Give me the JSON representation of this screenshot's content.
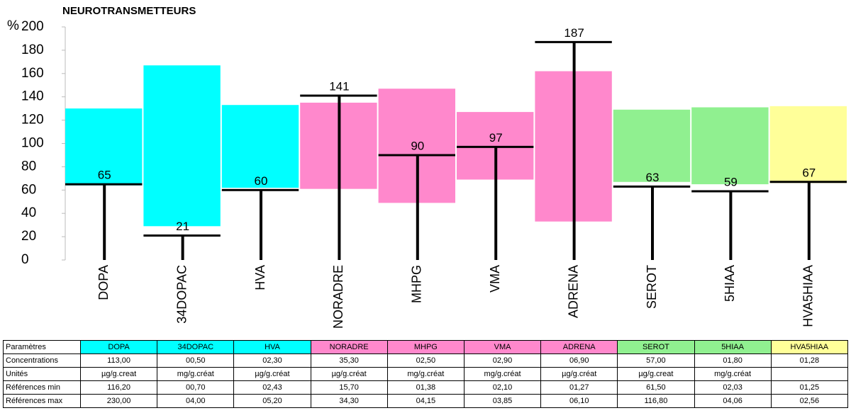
{
  "chart_data": {
    "type": "range_bar",
    "title": "NEUROTRANSMETTEURS",
    "y_label": "%",
    "categories": [
      "DOPA",
      "34DOPAC",
      "HVA",
      "NORADRE",
      "MHPG",
      "VMA",
      "ADRENA",
      "SEROT",
      "5HIAA",
      "HVA5HIAA"
    ],
    "colors": [
      "#00ffff",
      "#00ffff",
      "#00ffff",
      "#ff88cc",
      "#ff88cc",
      "#ff88cc",
      "#ff88cc",
      "#90f090",
      "#90f090",
      "#ffff99"
    ],
    "range_low": [
      64,
      29,
      62,
      61,
      49,
      69,
      33,
      67,
      65,
      66
    ],
    "range_high": [
      130,
      167,
      133,
      135,
      147,
      127,
      162,
      129,
      131,
      132
    ],
    "values": [
      65,
      21,
      60,
      141,
      90,
      97,
      187,
      63,
      59,
      67
    ],
    "ylim": [
      0,
      200
    ],
    "yticks": [
      0,
      20,
      40,
      60,
      80,
      100,
      120,
      140,
      160,
      180,
      200
    ]
  },
  "table": {
    "header": [
      "Paramètres",
      "DOPA",
      "34DOPAC",
      "HVA",
      "NORADRE",
      "MHPG",
      "VMA",
      "ADRENA",
      "SEROT",
      "5HIAA",
      "HVA5HIAA"
    ],
    "rows": [
      [
        "Concentrations",
        "113,00",
        "00,50",
        "02,30",
        "35,30",
        "02,50",
        "02,90",
        "06,90",
        "57,00",
        "01,80",
        "01,28"
      ],
      [
        "Unités",
        "µg/g.creat",
        "mg/g.créat",
        "µg/g.créat",
        "µg/g.créat",
        "mg/g.créat",
        "mg/g.créat",
        "µg/g.créat",
        "µg/g.creat",
        "mg/g.créat",
        null
      ],
      [
        "Références min",
        "116,20",
        "00,70",
        "02,43",
        "15,70",
        "01,38",
        "02,10",
        "01,27",
        "61,50",
        "02,03",
        "01,25"
      ],
      [
        "Références max",
        "230,00",
        "04,00",
        "05,20",
        "34,30",
        "04,15",
        "03,85",
        "06,10",
        "116,80",
        "04,06",
        "02,56"
      ]
    ]
  }
}
